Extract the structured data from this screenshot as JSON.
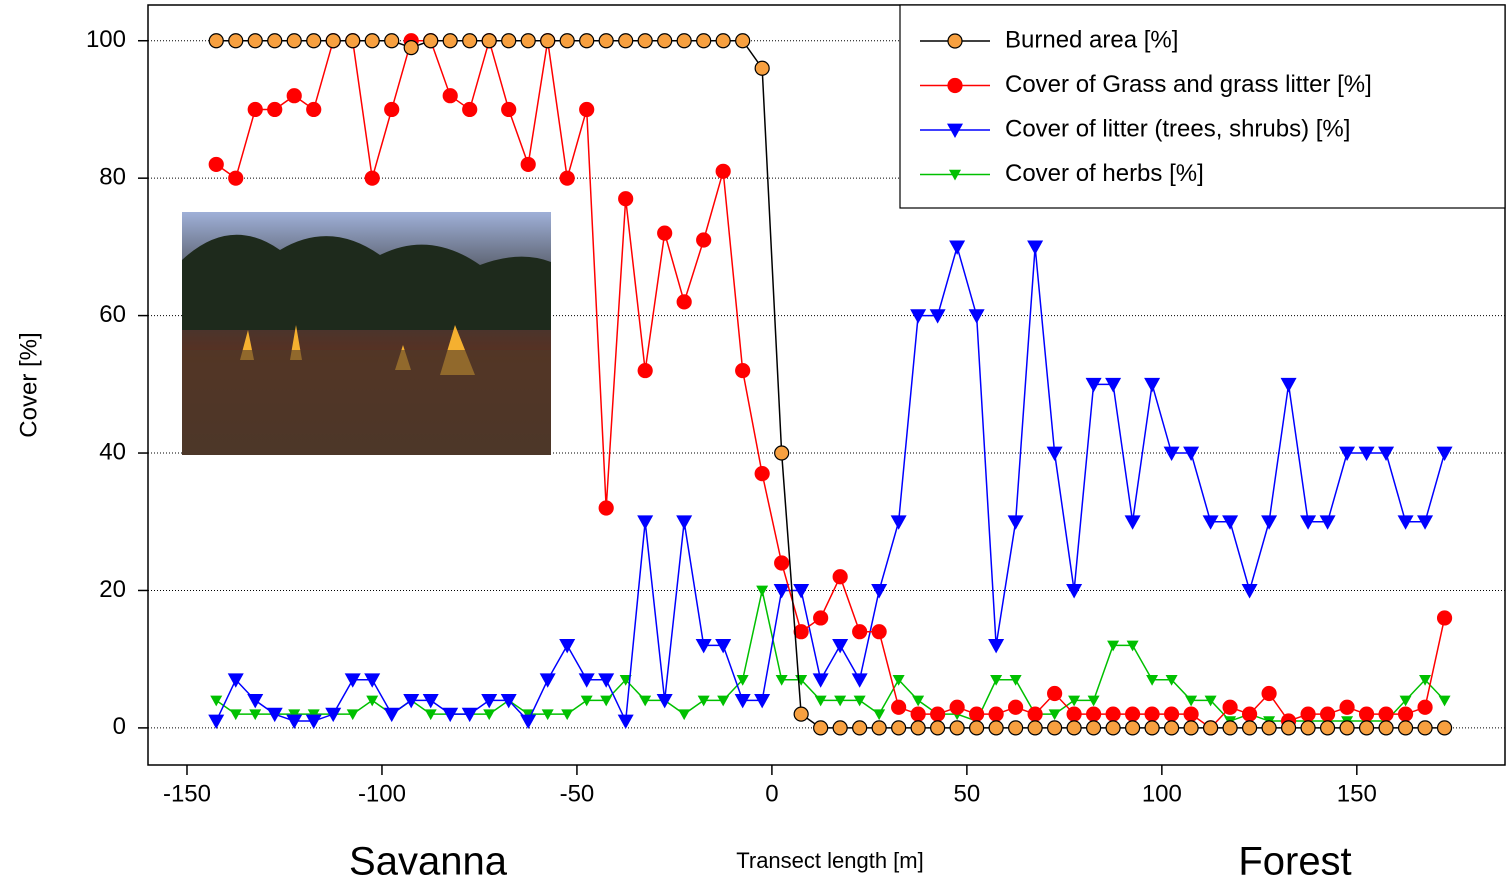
{
  "chart_data": {
    "type": "line",
    "xlabel": "Transect length [m]",
    "ylabel": "Cover [%]",
    "annotations": [
      "Savanna",
      "Forest"
    ],
    "x": [
      -142.5,
      -137.5,
      -132.5,
      -127.5,
      -122.5,
      -117.5,
      -112.5,
      -107.5,
      -102.5,
      -97.5,
      -92.5,
      -87.5,
      -82.5,
      -77.5,
      -72.5,
      -67.5,
      -62.5,
      -57.5,
      -52.5,
      -47.5,
      -42.5,
      -37.5,
      -32.5,
      -27.5,
      -22.5,
      -17.5,
      -12.5,
      -7.5,
      -2.5,
      2.5,
      7.5,
      12.5,
      17.5,
      22.5,
      27.5,
      32.5,
      37.5,
      42.5,
      47.5,
      52.5,
      57.5,
      62.5,
      67.5,
      72.5,
      77.5,
      82.5,
      87.5,
      92.5,
      97.5,
      102.5,
      107.5,
      112.5,
      117.5,
      122.5,
      127.5,
      132.5,
      137.5,
      142.5,
      147.5,
      152.5,
      157.5,
      162.5,
      167.5,
      172.5
    ],
    "series": [
      {
        "name": "Burned area [%]",
        "color": "#000000",
        "marker_color": "#f7a040",
        "marker": "circle",
        "values": [
          100,
          100,
          100,
          100,
          100,
          100,
          100,
          100,
          100,
          100,
          99,
          100,
          100,
          100,
          100,
          100,
          100,
          100,
          100,
          100,
          100,
          100,
          100,
          100,
          100,
          100,
          100,
          100,
          96,
          40,
          2,
          0,
          0,
          0,
          0,
          0,
          0,
          0,
          0,
          0,
          0,
          0,
          0,
          0,
          0,
          0,
          0,
          0,
          0,
          0,
          0,
          0,
          0,
          0,
          0,
          0,
          0,
          0,
          0,
          0,
          0,
          0,
          0,
          0
        ]
      },
      {
        "name": "Cover of Grass and grass litter [%]",
        "color": "#ff0000",
        "marker_color": "#ff0000",
        "marker": "circle",
        "values": [
          82,
          80,
          90,
          90,
          92,
          90,
          100,
          100,
          80,
          90,
          100,
          100,
          92,
          90,
          100,
          90,
          82,
          100,
          80,
          90,
          32,
          77,
          52,
          72,
          62,
          71,
          81,
          52,
          37,
          24,
          14,
          16,
          22,
          14,
          14,
          3,
          2,
          2,
          3,
          2,
          2,
          3,
          2,
          5,
          2,
          2,
          2,
          2,
          2,
          2,
          2,
          0,
          3,
          2,
          5,
          1,
          2,
          2,
          3,
          2,
          2,
          2,
          3,
          16
        ]
      },
      {
        "name": "Cover of litter (trees, shrubs) [%]",
        "color": "#0000ff",
        "marker_color": "#0000ff",
        "marker": "triangle",
        "values": [
          1,
          7,
          4,
          2,
          1,
          1,
          2,
          7,
          7,
          2,
          4,
          4,
          2,
          2,
          4,
          4,
          1,
          7,
          12,
          7,
          7,
          1,
          30,
          4,
          30,
          12,
          12,
          4,
          4,
          20,
          20,
          7,
          12,
          7,
          20,
          30,
          60,
          60,
          70,
          60,
          12,
          30,
          70,
          40,
          20,
          50,
          50,
          30,
          50,
          40,
          40,
          30,
          30,
          20,
          30,
          50,
          30,
          30,
          40,
          40,
          40,
          30,
          30,
          40
        ]
      },
      {
        "name": "Cover of herbs [%]",
        "color": "#00c000",
        "marker_color": "#00c000",
        "marker": "small-triangle",
        "values": [
          4,
          2,
          2,
          2,
          2,
          2,
          2,
          2,
          4,
          2,
          4,
          2,
          2,
          2,
          2,
          4,
          2,
          2,
          2,
          4,
          4,
          7,
          4,
          4,
          2,
          4,
          4,
          7,
          20,
          7,
          7,
          4,
          4,
          4,
          2,
          7,
          4,
          2,
          2,
          1,
          7,
          7,
          2,
          2,
          4,
          4,
          12,
          12,
          7,
          7,
          4,
          4,
          1,
          2,
          1,
          1,
          1,
          1,
          1,
          1,
          1,
          4,
          7,
          4
        ]
      }
    ],
    "xlim": [
      -160,
      188
    ],
    "xticks": [
      -150,
      -100,
      -50,
      0,
      50,
      100,
      150
    ],
    "ylim": [
      -5.4,
      105.2
    ],
    "yticks": [
      0,
      20,
      40,
      60,
      80,
      100
    ],
    "grid": "y",
    "legend": "upper right"
  }
}
